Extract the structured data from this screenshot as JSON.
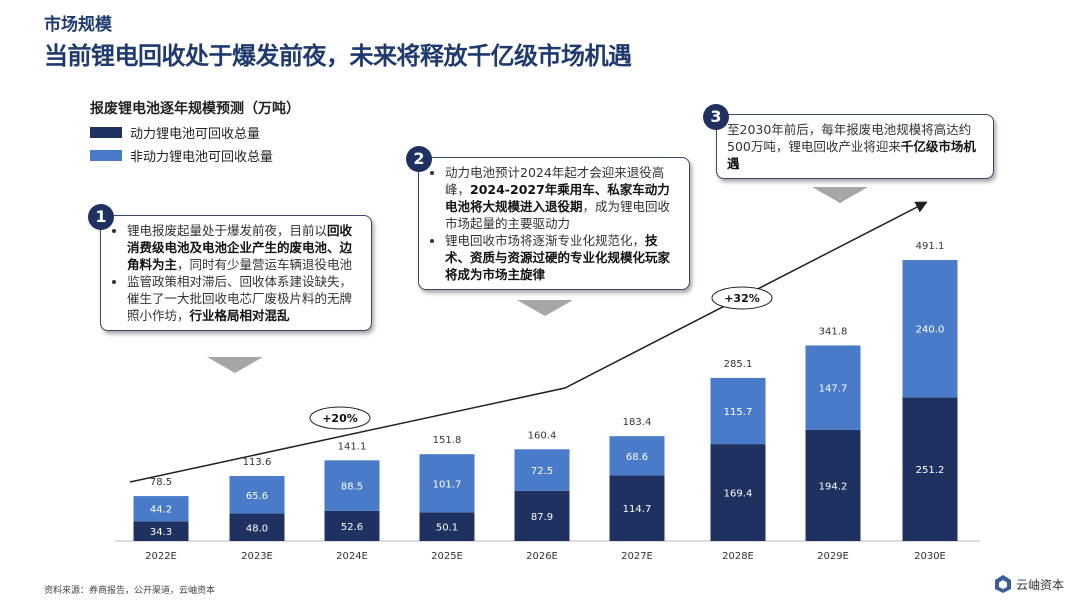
{
  "header": {
    "section": "市场规模",
    "title": "当前锂电回收处于爆发前夜，未来将释放千亿级市场机遇"
  },
  "colors": {
    "dark": "#1f3160",
    "light": "#4a7bc8",
    "title": "#1f3a6e"
  },
  "chart_data": {
    "type": "bar",
    "stacked": true,
    "title": "报废锂电池逐年规模预测（万吨）",
    "categories": [
      "2022E",
      "2023E",
      "2024E",
      "2025E",
      "2026E",
      "2027E",
      "2028E",
      "2029E",
      "2030E"
    ],
    "series": [
      {
        "name": "动力锂电池可回收总量",
        "values": [
          34.3,
          48.0,
          52.6,
          50.1,
          87.9,
          114.7,
          169.4,
          194.2,
          251.2
        ]
      },
      {
        "name": "非动力锂电池可回收总量",
        "values": [
          44.2,
          65.6,
          88.5,
          101.7,
          72.5,
          68.6,
          115.7,
          147.7,
          240.0
        ]
      }
    ],
    "totals": [
      78.5,
      113.6,
      141.1,
      151.8,
      160.4,
      183.4,
      285.1,
      341.8,
      491.1
    ],
    "legend": "top-left",
    "annotations": [
      "+20%",
      "+32%"
    ]
  },
  "callouts": [
    {
      "num": "1",
      "items": [
        [
          "锂电报废起量处于爆发前夜，目前以",
          "回收消费级电池及电池企业产生的废电池、边角料为主",
          "，同时有少量营运车辆退役电池"
        ],
        [
          "监管政策相对滞后、回收体系建设缺失，催生了一大批回收电芯厂废极片料的无牌照小作坊，",
          "行业格局相对混乱",
          ""
        ]
      ]
    },
    {
      "num": "2",
      "items": [
        [
          "动力电池预计2024年起才会迎来退役高峰，",
          "2024-2027年乘用车、私家车动力电池将大规模进入退役期",
          "，成为锂电回收市场起量的主要驱动力"
        ],
        [
          "锂电回收市场将逐渐专业化规范化，",
          "技术、资质与资源过硬的专业化规模化玩家将成为市场主旋律",
          ""
        ]
      ]
    },
    {
      "num": "3",
      "text": [
        "至2030年前后，每年报废电池规模将高达约500万吨，锂电回收产业将迎来",
        "千亿级市场机遇"
      ]
    }
  ],
  "footer": {
    "source": "资料来源：券商报告，公开渠道，云岫资本",
    "logo": "云岫资本"
  }
}
